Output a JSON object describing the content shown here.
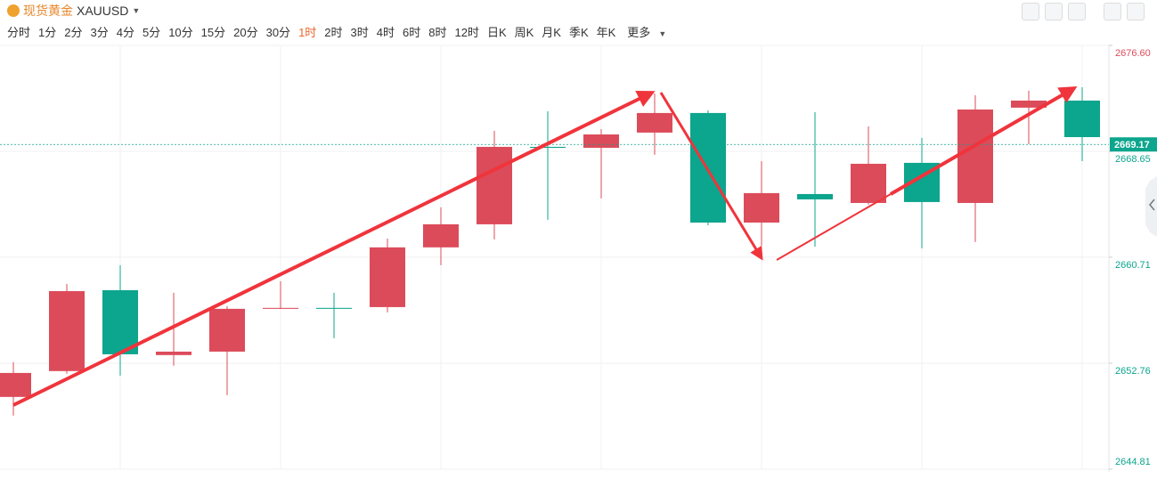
{
  "header": {
    "title": "现货黄金",
    "symbol": "XAUUSD"
  },
  "toolbar": {
    "intervals": [
      {
        "label": "分时"
      },
      {
        "label": "1分"
      },
      {
        "label": "2分"
      },
      {
        "label": "3分"
      },
      {
        "label": "4分"
      },
      {
        "label": "5分"
      },
      {
        "label": "10分"
      },
      {
        "label": "15分"
      },
      {
        "label": "20分"
      },
      {
        "label": "30分"
      },
      {
        "label": "1时",
        "active": true
      },
      {
        "label": "2时"
      },
      {
        "label": "3时"
      },
      {
        "label": "4时"
      },
      {
        "label": "6时"
      },
      {
        "label": "8时"
      },
      {
        "label": "12时"
      },
      {
        "label": "日K"
      },
      {
        "label": "周K"
      },
      {
        "label": "月K"
      },
      {
        "label": "季K"
      },
      {
        "label": "年K"
      }
    ],
    "more": "更多"
  },
  "chart_data": {
    "type": "candlestick",
    "open": [
      2650.23,
      2652.17,
      2658.24,
      2653.37,
      2653.63,
      2656.84,
      2656.91,
      2656.97,
      2661.45,
      2663.18,
      2668.99,
      2668.92,
      2670.06,
      2671.53,
      2663.31,
      2665.45,
      2664.78,
      2667.79,
      2664.78,
      2671.93,
      2672.46
    ],
    "high": [
      2652.83,
      2658.71,
      2660.11,
      2658.04,
      2657.04,
      2658.91,
      2658.04,
      2662.11,
      2664.45,
      2670.19,
      2671.66,
      2670.32,
      2672.99,
      2671.73,
      2667.92,
      2671.59,
      2670.52,
      2669.66,
      2672.86,
      2673.2,
      2673.46
    ],
    "low": [
      2648.83,
      2651.97,
      2651.83,
      2652.57,
      2650.36,
      2656.84,
      2654.64,
      2656.57,
      2660.11,
      2662.05,
      2663.52,
      2665.12,
      2668.39,
      2663.11,
      2661.58,
      2661.51,
      2664.65,
      2661.38,
      2661.85,
      2669.19,
      2667.92
    ],
    "close": [
      2652.03,
      2658.17,
      2653.43,
      2653.63,
      2656.84,
      2656.91,
      2656.84,
      2661.45,
      2663.18,
      2668.99,
      2668.92,
      2669.92,
      2671.53,
      2663.31,
      2665.52,
      2665.05,
      2667.72,
      2664.85,
      2671.79,
      2672.46,
      2669.72
    ],
    "up_color": "#dc4b5a",
    "down_color": "#0ca58d",
    "last_price": 2669.17,
    "ylim": [
      2644.81,
      2676.6
    ],
    "yticks": [
      {
        "value": 2676.6,
        "label": "2676.60"
      },
      2668.65,
      2660.71,
      2652.76,
      2644.81
    ],
    "grid": true
  }
}
